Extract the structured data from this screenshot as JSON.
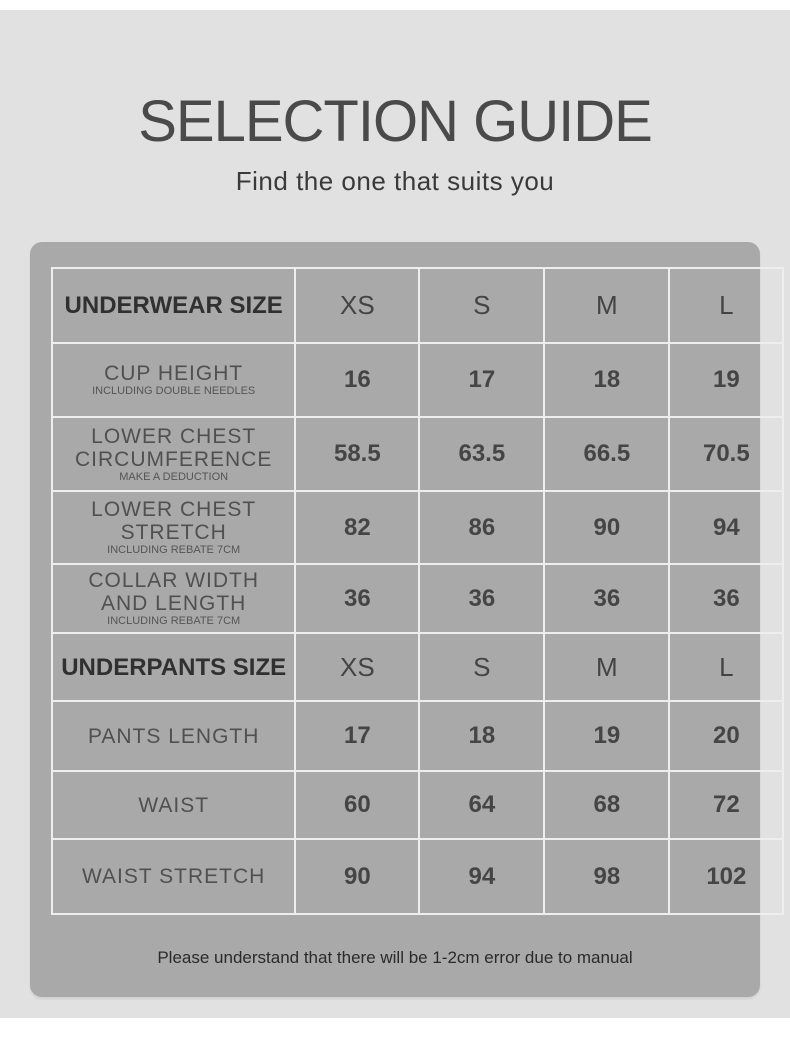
{
  "header": {
    "title": "SELECTION GUIDE",
    "subtitle": "Find the one that suits you"
  },
  "underwear": {
    "header": {
      "label": "UNDERWEAR SIZE",
      "sizes": [
        "XS",
        "S",
        "M",
        "L"
      ]
    },
    "rows": [
      {
        "label": "CUP HEIGHT",
        "note": "INCLUDING DOUBLE NEEDLES",
        "values": [
          "16",
          "17",
          "18",
          "19"
        ]
      },
      {
        "label": "LOWER CHEST CIRCUMFERENCE",
        "note": "MAKE A DEDUCTION",
        "values": [
          "58.5",
          "63.5",
          "66.5",
          "70.5"
        ]
      },
      {
        "label": "LOWER CHEST STRETCH",
        "note": "INCLUDING REBATE 7CM",
        "values": [
          "82",
          "86",
          "90",
          "94"
        ]
      },
      {
        "label": "COLLAR WIDTH AND LENGTH",
        "note": "INCLUDING REBATE 7CM",
        "values": [
          "36",
          "36",
          "36",
          "36"
        ]
      }
    ]
  },
  "underpants": {
    "header": {
      "label": "UNDERPANTS SIZE",
      "sizes": [
        "XS",
        "S",
        "M",
        "L"
      ]
    },
    "rows": [
      {
        "label": "PANTS LENGTH",
        "values": [
          "17",
          "18",
          "19",
          "20"
        ]
      },
      {
        "label": "WAIST",
        "values": [
          "60",
          "64",
          "68",
          "72"
        ]
      },
      {
        "label": "WAIST STRETCH",
        "values": [
          "90",
          "94",
          "98",
          "102"
        ]
      }
    ]
  },
  "footer": {
    "note": "Please understand that there will be 1-2cm error due to manual"
  },
  "colors": {
    "background": "#e1e1e1",
    "panel": "#a9a9a9",
    "grid": "#eeeeee",
    "text": "#444444"
  }
}
